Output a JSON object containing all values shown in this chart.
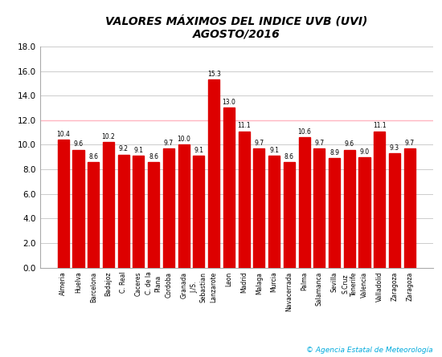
{
  "title_line1": "VALORES MÁXIMOS DEL INDICE UVB (UVI)",
  "title_line2": "AGOSTO/2016",
  "categories": [
    "Almeria",
    "Huelva",
    "Barcelona",
    "Badajoz",
    "C. Real",
    "Caceres",
    "C. de la\nPlana",
    "Cordoba",
    "Granada",
    "J./S.\nSebastian",
    "Lanzarote",
    "Leon",
    "Madrid",
    "Malaga",
    "Murcia",
    "Navacerrada",
    "Palma",
    "Salamanca",
    "Sevilla",
    "S.Cruz\nTenerife",
    "Valencia",
    "Valladolid",
    "Zaragoza",
    "Zaragoza"
  ],
  "values": [
    10.4,
    9.6,
    8.6,
    10.2,
    9.2,
    9.1,
    8.6,
    9.7,
    10.0,
    9.1,
    15.3,
    13.0,
    11.1,
    9.7,
    9.1,
    8.6,
    10.6,
    9.7,
    8.9,
    9.6,
    9.0,
    11.1,
    9.3,
    9.7
  ],
  "bar_color": "#dd0000",
  "background_color": "#ffffff",
  "plot_bg_color": "#ffffff",
  "ylim": [
    0,
    18.0
  ],
  "yticks": [
    0.0,
    2.0,
    4.0,
    6.0,
    8.0,
    10.0,
    12.0,
    14.0,
    16.0,
    18.0
  ],
  "grid_color": "#cccccc",
  "title_fontsize": 10,
  "value_fontsize": 5.5,
  "tick_fontsize": 5.5,
  "ytick_fontsize": 7.5,
  "reference_line_y": 12.0,
  "reference_line_color": "#ffb6c1",
  "copyright_text": "© Agencia Estatal de Meteorología",
  "copyright_color": "#00aadd",
  "bar_width": 0.75
}
